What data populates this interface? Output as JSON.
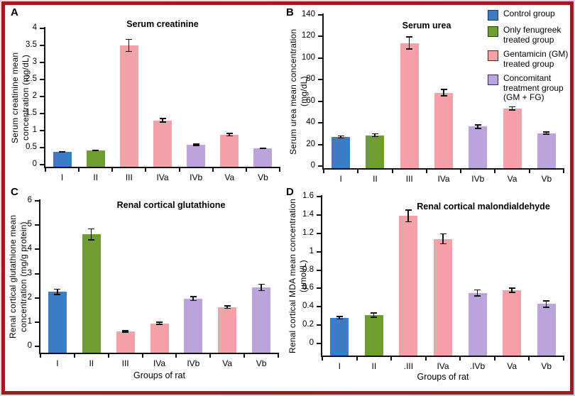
{
  "figure": {
    "panel_letters": [
      "A",
      "B",
      "C",
      "D"
    ],
    "bar_color_index": [
      0,
      1,
      2,
      2,
      3,
      2,
      3
    ],
    "group_colors": [
      "#3b7cc4",
      "#6f9c33",
      "#f2a2a8",
      "#bba4dc"
    ],
    "frame_border_color": "#9c1b20",
    "axis_color": "#111111"
  },
  "legend": {
    "items": [
      {
        "label": "Control group",
        "color": "#3b7cc4"
      },
      {
        "label": "Only fenugreek treated group",
        "color": "#6f9c33"
      },
      {
        "label": "Gentamicin (GM) treated group",
        "color": "#f2a2a8"
      },
      {
        "label": "Concomitant treatment group (GM + FG)",
        "color": "#bba4dc"
      }
    ]
  },
  "chart_data": [
    {
      "type": "bar",
      "panel": "A",
      "title": "Serum creatinine",
      "ylabel": "Serum creatinine mean concentration (mg/dL)",
      "xlabel": "",
      "categories": [
        "I",
        "II",
        "III",
        "IVa",
        "IVb",
        "Va",
        "Vb"
      ],
      "values": [
        0.37,
        0.42,
        3.5,
        1.3,
        0.58,
        0.88,
        0.48
      ],
      "errors": [
        0.025,
        0.02,
        0.19,
        0.07,
        0.04,
        0.05,
        0.025
      ],
      "ylim": [
        0,
        4
      ],
      "ytick_step": 0.5,
      "grid": false,
      "legend_position": "none"
    },
    {
      "type": "bar",
      "panel": "B",
      "title": "Serum urea",
      "ylabel": "Serum urea mean concentration (mg/dL)",
      "xlabel": "",
      "categories": [
        "I",
        "II",
        "III",
        "IVa",
        "IVb",
        "Va",
        "Vb"
      ],
      "values": [
        27,
        28.5,
        114,
        68,
        36.5,
        53.5,
        30.5
      ],
      "errors": [
        1.5,
        1.8,
        6,
        3.5,
        2,
        2,
        1.5
      ],
      "ylim": [
        0,
        140
      ],
      "ytick_step": 20,
      "grid": false,
      "legend_position": "top-right"
    },
    {
      "type": "bar",
      "panel": "C",
      "title": "Renal cortical glutathione",
      "ylabel": "Renal cortical glutathione mean concentration (mg/g protein)",
      "xlabel": "Groups of rat",
      "categories": [
        "I",
        "II",
        "III",
        "IVa",
        "IVb",
        "Va",
        "Vb"
      ],
      "values": [
        2.25,
        4.62,
        0.62,
        0.95,
        1.97,
        1.62,
        2.43
      ],
      "errors": [
        0.13,
        0.25,
        0.05,
        0.06,
        0.1,
        0.08,
        0.16
      ],
      "ylim": [
        0,
        6
      ],
      "ytick_step": 1,
      "grid": false,
      "legend_position": "none"
    },
    {
      "type": "bar",
      "panel": "D",
      "title": "Renal cortical malondialdehyde",
      "ylabel": "Renal cortical MDA mean concentration (µmol/L)",
      "xlabel": "Groups of rat",
      "categories": [
        "I",
        "II",
        ".III",
        "IVa",
        ".IVb",
        "Va",
        "Vb"
      ],
      "values": [
        0.28,
        0.31,
        1.39,
        1.14,
        0.55,
        0.58,
        0.43
      ],
      "errors": [
        0.02,
        0.03,
        0.07,
        0.06,
        0.04,
        0.03,
        0.04
      ],
      "ylim": [
        0,
        1.6
      ],
      "ytick_step": 0.2,
      "grid": false,
      "legend_position": "none"
    }
  ]
}
